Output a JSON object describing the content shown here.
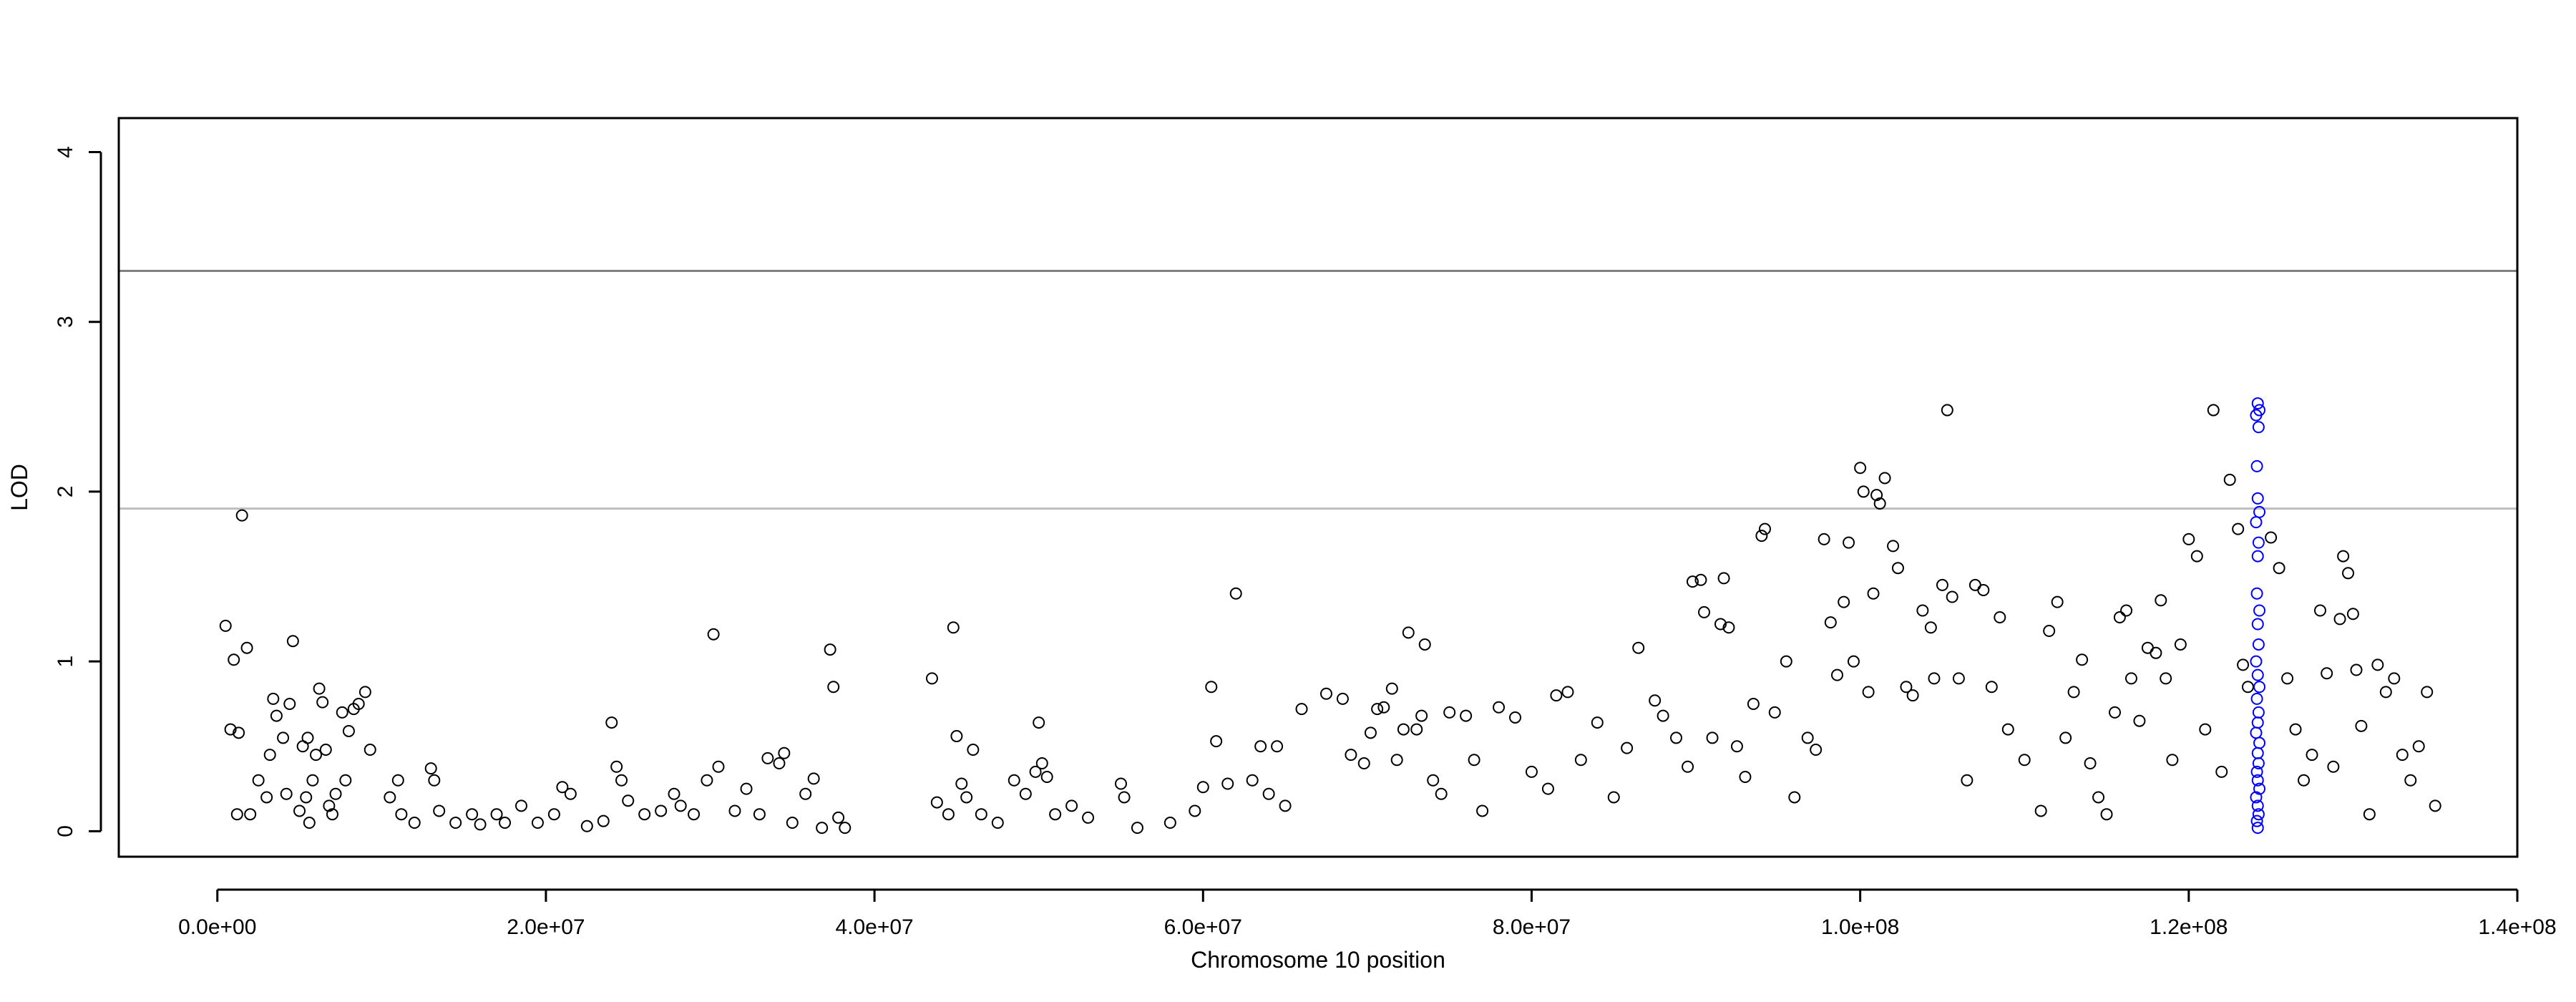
{
  "chart_data": {
    "type": "scatter",
    "xlabel": "Chromosome 10 position",
    "ylabel": "LOD",
    "xlim": [
      -6000000,
      140000000
    ],
    "ylim": [
      -0.15,
      4.2
    ],
    "x_ticks": [
      0,
      20000000,
      40000000,
      60000000,
      80000000,
      100000000,
      120000000,
      140000000
    ],
    "x_tick_labels": [
      "0.0e+00",
      "2.0e+07",
      "4.0e+07",
      "6.0e+07",
      "8.0e+07",
      "1.0e+08",
      "1.2e+08",
      "1.4e+08"
    ],
    "y_ticks": [
      0,
      1,
      2,
      3,
      4
    ],
    "y_tick_labels": [
      "0",
      "1",
      "2",
      "3",
      "4"
    ],
    "grid": false,
    "threshold_lines": [
      {
        "value": 3.3,
        "color": "#808080"
      },
      {
        "value": 1.9,
        "color": "#bebebe"
      }
    ],
    "series": [
      {
        "color": "#000000",
        "points": [
          [
            500000,
            1.21
          ],
          [
            800000,
            0.6
          ],
          [
            1000000,
            1.01
          ],
          [
            1300000,
            0.58
          ],
          [
            1500000,
            1.86
          ],
          [
            1800000,
            1.08
          ],
          [
            2000000,
            0.1
          ],
          [
            1200000,
            0.1
          ],
          [
            2500000,
            0.3
          ],
          [
            3000000,
            0.2
          ],
          [
            3200000,
            0.45
          ],
          [
            3400000,
            0.78
          ],
          [
            3600000,
            0.68
          ],
          [
            4000000,
            0.55
          ],
          [
            4200000,
            0.22
          ],
          [
            4400000,
            0.75
          ],
          [
            4600000,
            1.12
          ],
          [
            5000000,
            0.12
          ],
          [
            5200000,
            0.5
          ],
          [
            5500000,
            0.55
          ],
          [
            5800000,
            0.3
          ],
          [
            6000000,
            0.45
          ],
          [
            6200000,
            0.84
          ],
          [
            6400000,
            0.76
          ],
          [
            6600000,
            0.48
          ],
          [
            7000000,
            0.1
          ],
          [
            7200000,
            0.22
          ],
          [
            7600000,
            0.7
          ],
          [
            8000000,
            0.59
          ],
          [
            8300000,
            0.72
          ],
          [
            8600000,
            0.75
          ],
          [
            9000000,
            0.82
          ],
          [
            9300000,
            0.48
          ],
          [
            7800000,
            0.3
          ],
          [
            5400000,
            0.2
          ],
          [
            5600000,
            0.05
          ],
          [
            6800000,
            0.15
          ],
          [
            10500000,
            0.2
          ],
          [
            11000000,
            0.3
          ],
          [
            11200000,
            0.1
          ],
          [
            12000000,
            0.05
          ],
          [
            13000000,
            0.37
          ],
          [
            13200000,
            0.3
          ],
          [
            13500000,
            0.12
          ],
          [
            14500000,
            0.05
          ],
          [
            15500000,
            0.1
          ],
          [
            16000000,
            0.04
          ],
          [
            17000000,
            0.1
          ],
          [
            17500000,
            0.05
          ],
          [
            18500000,
            0.15
          ],
          [
            19500000,
            0.05
          ],
          [
            20500000,
            0.1
          ],
          [
            21000000,
            0.26
          ],
          [
            21500000,
            0.22
          ],
          [
            22500000,
            0.03
          ],
          [
            23500000,
            0.06
          ],
          [
            24000000,
            0.64
          ],
          [
            24300000,
            0.38
          ],
          [
            24600000,
            0.3
          ],
          [
            25000000,
            0.18
          ],
          [
            26000000,
            0.1
          ],
          [
            27000000,
            0.12
          ],
          [
            27800000,
            0.22
          ],
          [
            28200000,
            0.15
          ],
          [
            29000000,
            0.1
          ],
          [
            29800000,
            0.3
          ],
          [
            30200000,
            1.16
          ],
          [
            30500000,
            0.38
          ],
          [
            31500000,
            0.12
          ],
          [
            32200000,
            0.25
          ],
          [
            33000000,
            0.1
          ],
          [
            33500000,
            0.43
          ],
          [
            34200000,
            0.4
          ],
          [
            34500000,
            0.46
          ],
          [
            35000000,
            0.05
          ],
          [
            35800000,
            0.22
          ],
          [
            36300000,
            0.31
          ],
          [
            36800000,
            0.02
          ],
          [
            37300000,
            1.07
          ],
          [
            37500000,
            0.85
          ],
          [
            37800000,
            0.08
          ],
          [
            38200000,
            0.02
          ],
          [
            43500000,
            0.9
          ],
          [
            43800000,
            0.17
          ],
          [
            44500000,
            0.1
          ],
          [
            44800000,
            1.2
          ],
          [
            45000000,
            0.56
          ],
          [
            45300000,
            0.28
          ],
          [
            45600000,
            0.2
          ],
          [
            46000000,
            0.48
          ],
          [
            46500000,
            0.1
          ],
          [
            47500000,
            0.05
          ],
          [
            48500000,
            0.3
          ],
          [
            49200000,
            0.22
          ],
          [
            49800000,
            0.35
          ],
          [
            50000000,
            0.64
          ],
          [
            50200000,
            0.4
          ],
          [
            50500000,
            0.32
          ],
          [
            51000000,
            0.1
          ],
          [
            52000000,
            0.15
          ],
          [
            53000000,
            0.08
          ],
          [
            55000000,
            0.28
          ],
          [
            55200000,
            0.2
          ],
          [
            56000000,
            0.02
          ],
          [
            58000000,
            0.05
          ],
          [
            59500000,
            0.12
          ],
          [
            60000000,
            0.26
          ],
          [
            60500000,
            0.85
          ],
          [
            60800000,
            0.53
          ],
          [
            61500000,
            0.28
          ],
          [
            62000000,
            1.4
          ],
          [
            63000000,
            0.3
          ],
          [
            63500000,
            0.5
          ],
          [
            64000000,
            0.22
          ],
          [
            64500000,
            0.5
          ],
          [
            65000000,
            0.15
          ],
          [
            66000000,
            0.72
          ],
          [
            67500000,
            0.81
          ],
          [
            68500000,
            0.78
          ],
          [
            69000000,
            0.45
          ],
          [
            69800000,
            0.4
          ],
          [
            70200000,
            0.58
          ],
          [
            70600000,
            0.72
          ],
          [
            71000000,
            0.73
          ],
          [
            71500000,
            0.84
          ],
          [
            71800000,
            0.42
          ],
          [
            72200000,
            0.6
          ],
          [
            72500000,
            1.17
          ],
          [
            73000000,
            0.6
          ],
          [
            73300000,
            0.68
          ],
          [
            73500000,
            1.1
          ],
          [
            74000000,
            0.3
          ],
          [
            74500000,
            0.22
          ],
          [
            75000000,
            0.7
          ],
          [
            76000000,
            0.68
          ],
          [
            76500000,
            0.42
          ],
          [
            77000000,
            0.12
          ],
          [
            78000000,
            0.73
          ],
          [
            79000000,
            0.67
          ],
          [
            80000000,
            0.35
          ],
          [
            81000000,
            0.25
          ],
          [
            81500000,
            0.8
          ],
          [
            82200000,
            0.82
          ],
          [
            83000000,
            0.42
          ],
          [
            84000000,
            0.64
          ],
          [
            85000000,
            0.2
          ],
          [
            85800000,
            0.49
          ],
          [
            86500000,
            1.08
          ],
          [
            87500000,
            0.77
          ],
          [
            88000000,
            0.68
          ],
          [
            88800000,
            0.55
          ],
          [
            89500000,
            0.38
          ],
          [
            89800000,
            1.47
          ],
          [
            90300000,
            1.48
          ],
          [
            90500000,
            1.29
          ],
          [
            91000000,
            0.55
          ],
          [
            91500000,
            1.22
          ],
          [
            91700000,
            1.49
          ],
          [
            92000000,
            1.2
          ],
          [
            92500000,
            0.5
          ],
          [
            93000000,
            0.32
          ],
          [
            93500000,
            0.75
          ],
          [
            94000000,
            1.74
          ],
          [
            94200000,
            1.78
          ],
          [
            94800000,
            0.7
          ],
          [
            95500000,
            1.0
          ],
          [
            96000000,
            0.2
          ],
          [
            96800000,
            0.55
          ],
          [
            97300000,
            0.48
          ],
          [
            97800000,
            1.72
          ],
          [
            98200000,
            1.23
          ],
          [
            98600000,
            0.92
          ],
          [
            99000000,
            1.35
          ],
          [
            99300000,
            1.7
          ],
          [
            99600000,
            1.0
          ],
          [
            100000000,
            2.14
          ],
          [
            100200000,
            2.0
          ],
          [
            100500000,
            0.82
          ],
          [
            100800000,
            1.4
          ],
          [
            101000000,
            1.98
          ],
          [
            101200000,
            1.93
          ],
          [
            101500000,
            2.08
          ],
          [
            102000000,
            1.68
          ],
          [
            102300000,
            1.55
          ],
          [
            102800000,
            0.85
          ],
          [
            103200000,
            0.8
          ],
          [
            103800000,
            1.3
          ],
          [
            104300000,
            1.2
          ],
          [
            104500000,
            0.9
          ],
          [
            105000000,
            1.45
          ],
          [
            105300000,
            2.48
          ],
          [
            105600000,
            1.38
          ],
          [
            106000000,
            0.9
          ],
          [
            106500000,
            0.3
          ],
          [
            107000000,
            1.45
          ],
          [
            107500000,
            1.42
          ],
          [
            108000000,
            0.85
          ],
          [
            108500000,
            1.26
          ],
          [
            109000000,
            0.6
          ],
          [
            110000000,
            0.42
          ],
          [
            111000000,
            0.12
          ],
          [
            111500000,
            1.18
          ],
          [
            112000000,
            1.35
          ],
          [
            112500000,
            0.55
          ],
          [
            113000000,
            0.82
          ],
          [
            113500000,
            1.01
          ],
          [
            114000000,
            0.4
          ],
          [
            114500000,
            0.2
          ],
          [
            115000000,
            0.1
          ],
          [
            115500000,
            0.7
          ],
          [
            115800000,
            1.26
          ],
          [
            116200000,
            1.3
          ],
          [
            116500000,
            0.9
          ],
          [
            117000000,
            0.65
          ],
          [
            117500000,
            1.08
          ],
          [
            118000000,
            1.05
          ],
          [
            118300000,
            1.36
          ],
          [
            118600000,
            0.9
          ],
          [
            119000000,
            0.42
          ],
          [
            119500000,
            1.1
          ],
          [
            120000000,
            1.72
          ],
          [
            120500000,
            1.62
          ],
          [
            121000000,
            0.6
          ],
          [
            121500000,
            2.48
          ],
          [
            122000000,
            0.35
          ],
          [
            122500000,
            2.07
          ],
          [
            123000000,
            1.78
          ],
          [
            123300000,
            0.98
          ],
          [
            123600000,
            0.85
          ],
          [
            125000000,
            1.73
          ],
          [
            125500000,
            1.55
          ],
          [
            126000000,
            0.9
          ],
          [
            126500000,
            0.6
          ],
          [
            127000000,
            0.3
          ],
          [
            127500000,
            0.45
          ],
          [
            128000000,
            1.3
          ],
          [
            128400000,
            0.93
          ],
          [
            128800000,
            0.38
          ],
          [
            129200000,
            1.25
          ],
          [
            129400000,
            1.62
          ],
          [
            129700000,
            1.52
          ],
          [
            130000000,
            1.28
          ],
          [
            130200000,
            0.95
          ],
          [
            130500000,
            0.62
          ],
          [
            131000000,
            0.1
          ],
          [
            131500000,
            0.98
          ],
          [
            132000000,
            0.82
          ],
          [
            132500000,
            0.9
          ],
          [
            133000000,
            0.45
          ],
          [
            133500000,
            0.3
          ],
          [
            134000000,
            0.5
          ],
          [
            134500000,
            0.82
          ],
          [
            135000000,
            0.15
          ]
        ]
      },
      {
        "color": "#0000ff",
        "points": [
          [
            124200000,
            2.52
          ],
          [
            124300000,
            2.48
          ],
          [
            124100000,
            2.45
          ],
          [
            124250000,
            2.38
          ],
          [
            124150000,
            2.15
          ],
          [
            124200000,
            1.96
          ],
          [
            124300000,
            1.88
          ],
          [
            124100000,
            1.82
          ],
          [
            124250000,
            1.7
          ],
          [
            124200000,
            1.62
          ],
          [
            124150000,
            1.4
          ],
          [
            124300000,
            1.3
          ],
          [
            124200000,
            1.22
          ],
          [
            124250000,
            1.1
          ],
          [
            124100000,
            1.0
          ],
          [
            124200000,
            0.92
          ],
          [
            124300000,
            0.85
          ],
          [
            124150000,
            0.78
          ],
          [
            124250000,
            0.7
          ],
          [
            124200000,
            0.64
          ],
          [
            124100000,
            0.58
          ],
          [
            124300000,
            0.52
          ],
          [
            124200000,
            0.46
          ],
          [
            124250000,
            0.4
          ],
          [
            124150000,
            0.35
          ],
          [
            124200000,
            0.3
          ],
          [
            124300000,
            0.25
          ],
          [
            124100000,
            0.2
          ],
          [
            124200000,
            0.15
          ],
          [
            124250000,
            0.1
          ],
          [
            124150000,
            0.06
          ],
          [
            124200000,
            0.02
          ]
        ]
      }
    ]
  }
}
